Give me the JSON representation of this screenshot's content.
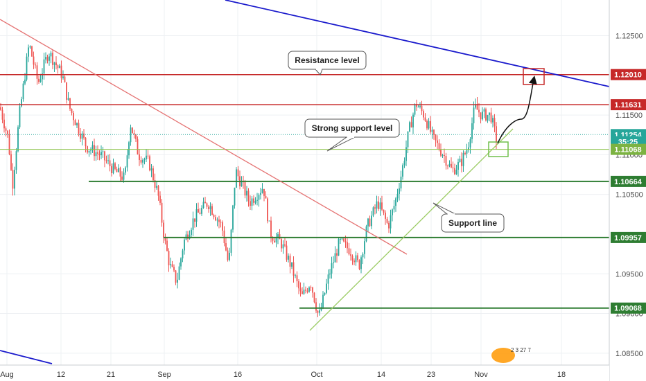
{
  "chart_data": {
    "type": "candlestick",
    "x_axis": {
      "ticks": [
        "Aug",
        "12",
        "21",
        "Sep",
        "16",
        "Oct",
        "14",
        "23",
        "Nov",
        "18"
      ]
    },
    "y_axis": {
      "range": [
        1.0835,
        1.1295
      ],
      "ticks": [
        "1.12500",
        "1.11500",
        "1.11000",
        "1.10500",
        "1.09500",
        "1.09000",
        "1.08500"
      ],
      "side": "right"
    },
    "price_tags": [
      {
        "label": "1.12010",
        "value": 1.1201,
        "color": "#c62828"
      },
      {
        "label": "1.11631",
        "value": 1.11631,
        "color": "#c62828"
      },
      {
        "label": "1.11254",
        "value": 1.11254,
        "color": "#26a69a"
      },
      {
        "label": "35:25",
        "value": 1.11165,
        "color": "#26a69a"
      },
      {
        "label": "1.11068",
        "value": 1.11068,
        "color": "#7cb342"
      },
      {
        "label": "1.10664",
        "value": 1.10664,
        "color": "#2e7d32"
      },
      {
        "label": "1.09957",
        "value": 1.09957,
        "color": "#2e7d32"
      },
      {
        "label": "1.09068",
        "value": 1.09068,
        "color": "#2e7d32"
      }
    ],
    "levels": [
      {
        "name": "resistance",
        "value": 1.1201,
        "color": "#c62828"
      },
      {
        "name": "upper-resistance",
        "value": 1.11631,
        "color": "#c62828"
      },
      {
        "name": "current-price",
        "value": 1.11254,
        "color": "#26a69a"
      },
      {
        "name": "strong-support",
        "value": 1.11068,
        "color": "#8bc34a"
      },
      {
        "name": "support-1",
        "value": 1.10664,
        "color": "#2e7d32"
      },
      {
        "name": "support-2",
        "value": 1.09957,
        "color": "#2e7d32"
      },
      {
        "name": "support-3",
        "value": 1.09068,
        "color": "#2e7d32"
      }
    ],
    "annotations": [
      {
        "text": "Resistance level"
      },
      {
        "text": "Strong support level"
      },
      {
        "text": "Support line"
      }
    ],
    "colors": {
      "up": "#26a69a",
      "down": "#ef5350",
      "trend_down": "#e57373",
      "long_trend": "#1a1acc",
      "support_line": "#9ccc65"
    }
  },
  "watermark": {
    "text": "2 3 27 7"
  }
}
